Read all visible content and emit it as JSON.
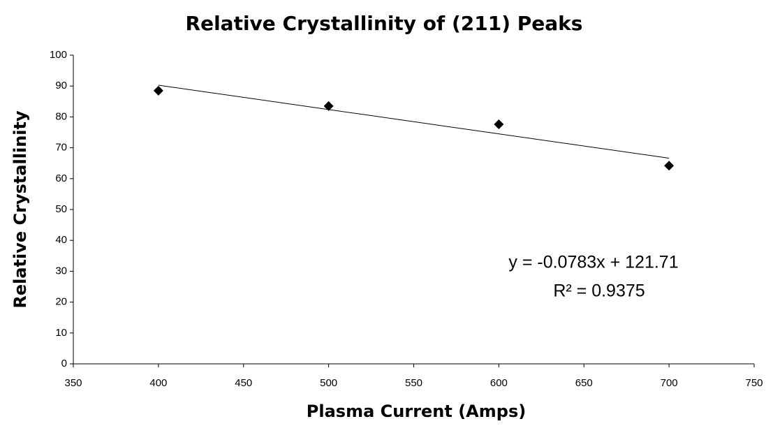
{
  "chart_data": {
    "type": "scatter",
    "title": "Relative Crystallinity of (211) Peaks",
    "x_label": "Plasma Current (Amps)",
    "y_label": "Relative Crystallinity",
    "series": [
      {
        "color": "#000000",
        "x": [
          400,
          500,
          600,
          700
        ],
        "values": [
          88.5,
          83.5,
          77.6,
          64.2
        ]
      }
    ],
    "trendline": true,
    "annotations": [
      "y = -0.0783x + 121.71",
      "R² = 0.9375"
    ],
    "xlim": [
      350,
      750
    ],
    "xticks": [
      350,
      400,
      450,
      500,
      550,
      600,
      650,
      700,
      750
    ],
    "ylim": [
      0,
      100
    ],
    "yticks": [
      0,
      10,
      20,
      30,
      40,
      50,
      60,
      70,
      80,
      90,
      100
    ],
    "grid": false
  }
}
